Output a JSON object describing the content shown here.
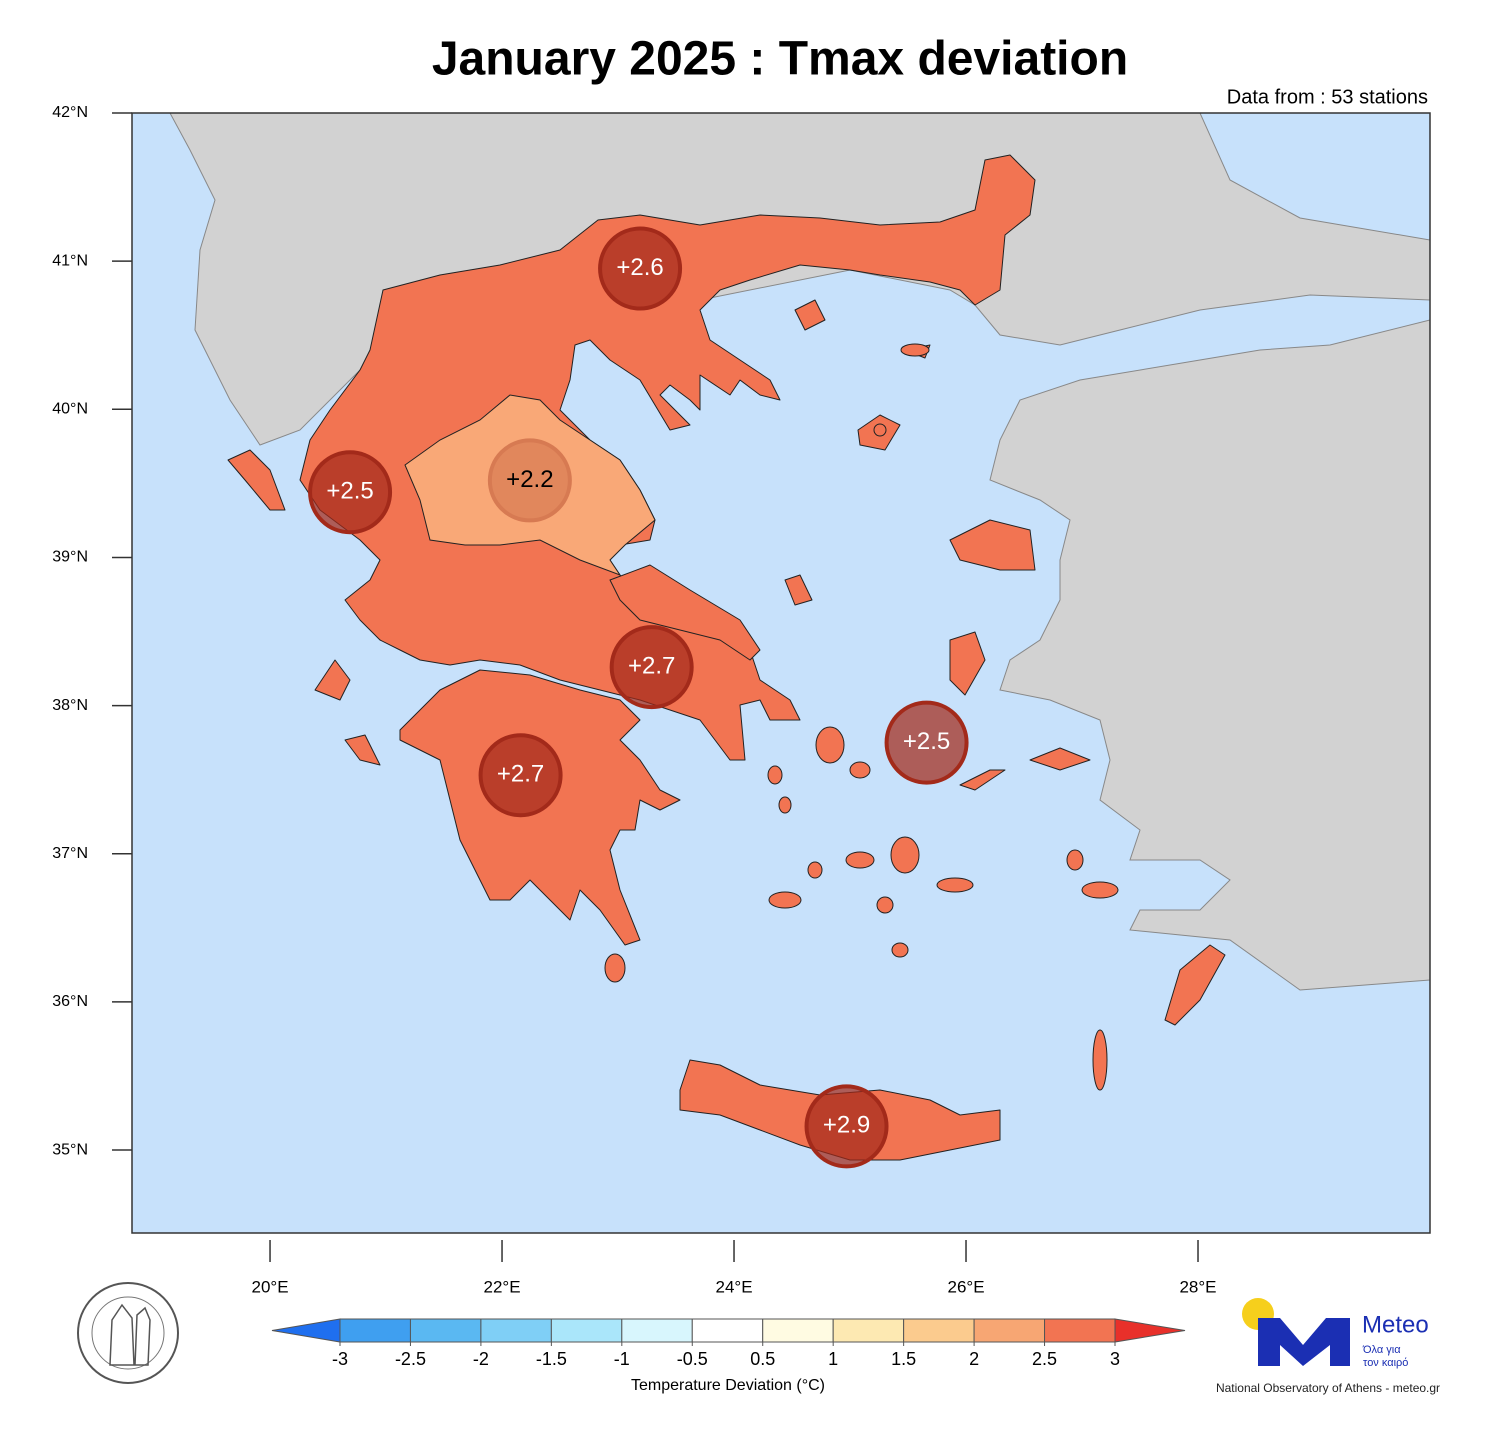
{
  "chart_data": {
    "type": "map",
    "title": "January 2025 : Tmax deviation",
    "subtitle": "Data from : 53 stations",
    "xlim": [
      18.81,
      30
    ],
    "ylim": [
      34.44,
      42
    ],
    "xticks": [
      {
        "value": 20,
        "label": "20°E"
      },
      {
        "value": 22,
        "label": "22°E"
      },
      {
        "value": 24,
        "label": "24°E"
      },
      {
        "value": 26,
        "label": "26°E"
      },
      {
        "value": 28,
        "label": "28°E"
      }
    ],
    "yticks": [
      {
        "value": 35,
        "label": "35°N"
      },
      {
        "value": 36,
        "label": "36°N"
      },
      {
        "value": 37,
        "label": "37°N"
      },
      {
        "value": 38,
        "label": "38°N"
      },
      {
        "value": 39,
        "label": "39°N"
      },
      {
        "value": 40,
        "label": "40°N"
      },
      {
        "value": 41,
        "label": "41°N"
      },
      {
        "value": 42,
        "label": "42°N"
      }
    ],
    "stations": {
      "lon": [
        23.19,
        20.69,
        22.24,
        23.29,
        22.16,
        25.66,
        24.97
      ],
      "lat": [
        40.95,
        39.44,
        39.52,
        38.26,
        37.53,
        37.75,
        35.16
      ],
      "values": [
        2.6,
        2.5,
        2.2,
        2.7,
        2.7,
        2.5,
        2.9
      ],
      "value_labels": [
        "+2.6",
        "+2.5",
        "+2.2",
        "+2.7",
        "+2.7",
        "+2.5",
        "+2.9"
      ],
      "colors": [
        "#a32a1a",
        "#a32a1a",
        "#d77a52",
        "#a32a1a",
        "#a32a1a",
        "#a32a1a",
        "#a32a1a"
      ],
      "label_colors": [
        "#ffffff",
        "#ffffff",
        "#000000",
        "#ffffff",
        "#ffffff",
        "#ffffff",
        "#ffffff"
      ]
    },
    "colorbar": {
      "levels": [
        -3,
        -2.5,
        -2,
        -1.5,
        -1,
        -0.5,
        0.5,
        1,
        1.5,
        2,
        2.5,
        3
      ],
      "colors": [
        "#1f6fef",
        "#3f9ff0",
        "#5ab8f2",
        "#7fcff6",
        "#aae6fa",
        "#d8f6fd",
        "#ffffff",
        "#fffbe2",
        "#fde9b2",
        "#fbcb8e",
        "#f7a673",
        "#f27452",
        "#e8302a"
      ],
      "label": "Temperature Deviation (°C)"
    }
  },
  "logo": {
    "name": "Meteo",
    "tagline": [
      "Όλα για",
      "τον καιρό"
    ],
    "credit": "National Observatory of Athens - meteo.gr"
  }
}
